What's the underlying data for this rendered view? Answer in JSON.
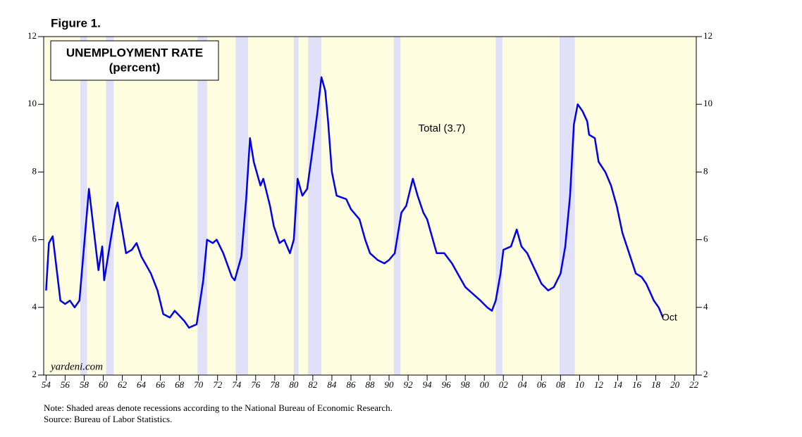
{
  "chart_data": {
    "type": "line",
    "figure_label": "Figure 1.",
    "title": "UNEMPLOYMENT RATE",
    "subtitle": "(percent)",
    "annotation": "Total (3.7)",
    "end_label": "Oct",
    "watermark": "yardeni.com",
    "notes": [
      "Note: Shaded areas denote recessions according to the National Bureau of Economic Research.",
      "Source: Bureau of Labor Statistics."
    ],
    "xlim": [
      1953.75,
      2022.25
    ],
    "xticks": [
      {
        "value": 1954,
        "label": "54"
      },
      {
        "value": 1956,
        "label": "56"
      },
      {
        "value": 1958,
        "label": "58"
      },
      {
        "value": 1960,
        "label": "60"
      },
      {
        "value": 1962,
        "label": "62"
      },
      {
        "value": 1964,
        "label": "64"
      },
      {
        "value": 1966,
        "label": "66"
      },
      {
        "value": 1968,
        "label": "68"
      },
      {
        "value": 1970,
        "label": "70"
      },
      {
        "value": 1972,
        "label": "72"
      },
      {
        "value": 1974,
        "label": "74"
      },
      {
        "value": 1976,
        "label": "76"
      },
      {
        "value": 1978,
        "label": "78"
      },
      {
        "value": 1980,
        "label": "80"
      },
      {
        "value": 1982,
        "label": "82"
      },
      {
        "value": 1984,
        "label": "84"
      },
      {
        "value": 1986,
        "label": "86"
      },
      {
        "value": 1988,
        "label": "88"
      },
      {
        "value": 1990,
        "label": "90"
      },
      {
        "value": 1992,
        "label": "92"
      },
      {
        "value": 1994,
        "label": "94"
      },
      {
        "value": 1996,
        "label": "96"
      },
      {
        "value": 1998,
        "label": "98"
      },
      {
        "value": 2000,
        "label": "00"
      },
      {
        "value": 2002,
        "label": "02"
      },
      {
        "value": 2004,
        "label": "04"
      },
      {
        "value": 2006,
        "label": "06"
      },
      {
        "value": 2008,
        "label": "08"
      },
      {
        "value": 2010,
        "label": "10"
      },
      {
        "value": 2012,
        "label": "12"
      },
      {
        "value": 2014,
        "label": "14"
      },
      {
        "value": 2016,
        "label": "16"
      },
      {
        "value": 2018,
        "label": "18"
      },
      {
        "value": 2020,
        "label": "20"
      },
      {
        "value": 2022,
        "label": "22"
      }
    ],
    "ylim": [
      2,
      12
    ],
    "yticks": [
      2,
      4,
      6,
      8,
      10,
      12
    ],
    "background": "#fffde0",
    "recession_color": "#e0e0f8",
    "recessions": [
      [
        1957.6,
        1958.3
      ],
      [
        1960.3,
        1961.1
      ],
      [
        1969.9,
        1970.9
      ],
      [
        1973.9,
        1975.2
      ],
      [
        1980.0,
        1980.5
      ],
      [
        1981.5,
        1982.9
      ],
      [
        1990.5,
        1991.2
      ],
      [
        2001.2,
        2001.9
      ],
      [
        2007.9,
        2009.5
      ]
    ],
    "x": [
      1954.0,
      1954.3,
      1954.7,
      1955.5,
      1956.0,
      1956.5,
      1957.0,
      1957.5,
      1958.5,
      1959.5,
      1959.9,
      1960.1,
      1960.5,
      1961.3,
      1961.5,
      1962.4,
      1963.0,
      1963.5,
      1964.0,
      1965.0,
      1965.7,
      1966.3,
      1967.0,
      1967.5,
      1968.5,
      1969.0,
      1969.8,
      1970.5,
      1970.9,
      1971.5,
      1971.9,
      1972.6,
      1973.5,
      1973.8,
      1974.5,
      1975.0,
      1975.4,
      1975.8,
      1976.5,
      1976.8,
      1977.5,
      1977.9,
      1978.5,
      1979.0,
      1979.6,
      1980.0,
      1980.4,
      1980.9,
      1981.4,
      1981.9,
      1982.5,
      1982.9,
      1983.3,
      1983.6,
      1984.0,
      1984.5,
      1985.5,
      1986.0,
      1986.9,
      1987.5,
      1988.0,
      1988.8,
      1989.5,
      1990.0,
      1990.6,
      1991.3,
      1991.8,
      1992.5,
      1993.0,
      1993.6,
      1994.0,
      1995.0,
      1995.8,
      1996.6,
      1997.2,
      1998.0,
      1998.8,
      1999.6,
      2000.3,
      2000.8,
      2001.2,
      2001.7,
      2002.0,
      2002.8,
      2003.4,
      2003.9,
      2004.5,
      2005.0,
      2005.5,
      2006.0,
      2006.7,
      2007.3,
      2008.0,
      2008.5,
      2009.0,
      2009.4,
      2009.8,
      2010.3,
      2010.8,
      2011.0,
      2011.6,
      2012.0,
      2012.7,
      2013.3,
      2013.9,
      2014.5,
      2015.2,
      2015.9,
      2016.5,
      2017.0,
      2017.8,
      2018.3,
      2018.75
    ],
    "series": [
      {
        "name": "Total",
        "color": "#0000ee",
        "values": [
          4.5,
          5.9,
          6.1,
          4.2,
          4.1,
          4.2,
          4.0,
          4.2,
          7.5,
          5.1,
          5.8,
          4.8,
          5.5,
          6.9,
          7.1,
          5.6,
          5.7,
          5.9,
          5.5,
          5.0,
          4.5,
          3.8,
          3.7,
          3.9,
          3.6,
          3.4,
          3.5,
          4.8,
          6.0,
          5.9,
          6.0,
          5.6,
          4.9,
          4.8,
          5.5,
          7.2,
          9.0,
          8.3,
          7.6,
          7.8,
          7.0,
          6.4,
          5.9,
          6.0,
          5.6,
          6.0,
          7.8,
          7.3,
          7.5,
          8.5,
          9.8,
          10.8,
          10.4,
          9.5,
          8.0,
          7.3,
          7.2,
          6.9,
          6.6,
          6.0,
          5.6,
          5.4,
          5.3,
          5.4,
          5.6,
          6.8,
          7.0,
          7.8,
          7.3,
          6.8,
          6.6,
          5.6,
          5.6,
          5.3,
          5.0,
          4.6,
          4.4,
          4.2,
          4.0,
          3.9,
          4.2,
          5.0,
          5.7,
          5.8,
          6.3,
          5.8,
          5.6,
          5.3,
          5.0,
          4.7,
          4.5,
          4.6,
          5.0,
          5.8,
          7.3,
          9.4,
          10.0,
          9.8,
          9.5,
          9.1,
          9.0,
          8.3,
          8.0,
          7.6,
          7.0,
          6.2,
          5.6,
          5.0,
          4.9,
          4.7,
          4.2,
          4.0,
          3.7
        ]
      }
    ]
  }
}
